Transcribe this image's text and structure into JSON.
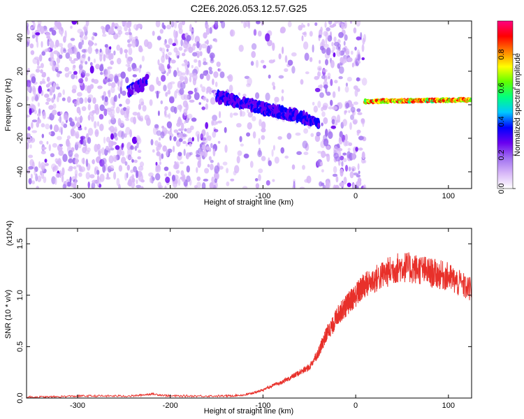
{
  "title": "C2E6.2026.053.12.57.G25",
  "chart_data": [
    {
      "type": "heatmap",
      "xlabel": "Height of straight line (km)",
      "ylabel": "Frequency (Hz)",
      "xlim": [
        -355,
        125
      ],
      "ylim": [
        -50,
        50
      ],
      "xticks": [
        -300,
        -200,
        -100,
        0,
        100
      ],
      "yticks": [
        -40,
        -20,
        0,
        20,
        40
      ],
      "grid": false,
      "colorbar": {
        "label": "Normalized spectral amplitude",
        "range": [
          0.0,
          1.0
        ],
        "ticks": [
          0.0,
          0.2,
          0.4,
          0.6,
          0.8
        ],
        "tick_labels": [
          "0.0",
          "0.2",
          "0.4",
          "0.6",
          "0.8"
        ],
        "colors": [
          "#ffffff",
          "#d8b8f8",
          "#a070f0",
          "#6a00f0",
          "#0000ff",
          "#00c8ff",
          "#00ff80",
          "#60ff00",
          "#ffff00",
          "#ff8000",
          "#ff0000",
          "#ff0080"
        ]
      },
      "features": [
        {
          "x": [
            -245,
            -225
          ],
          "y": [
            8,
            14
          ],
          "amplitude": 0.35
        },
        {
          "x": [
            -150,
            -40
          ],
          "y": [
            5,
            -10
          ],
          "amplitude": 0.4
        },
        {
          "x": [
            10,
            125
          ],
          "y": [
            2,
            3
          ],
          "amplitude": 0.95
        }
      ]
    },
    {
      "type": "line",
      "xlabel": "Height of straight line (km)",
      "ylabel": "SNR (10 * v/v)",
      "y_multiplier": "(x10^4)",
      "xlim": [
        -355,
        125
      ],
      "ylim": [
        0,
        1.65
      ],
      "xticks": [
        -300,
        -200,
        -100,
        0,
        100
      ],
      "yticks": [
        0.0,
        0.5,
        1.0,
        1.5
      ],
      "ytick_labels": [
        "0.0",
        "0.5",
        "1.0",
        "1.5"
      ],
      "grid": false,
      "series": [
        {
          "color": "#e8302a",
          "x": [
            -355,
            -330,
            -300,
            -270,
            -240,
            -220,
            -200,
            -170,
            -140,
            -120,
            -110,
            -100,
            -90,
            -80,
            -70,
            -60,
            -50,
            -40,
            -35,
            -30,
            -25,
            -20,
            -15,
            -10,
            -5,
            0,
            5,
            10,
            20,
            30,
            40,
            50,
            60,
            70,
            80,
            90,
            100,
            110,
            125
          ],
          "y": [
            0.01,
            0.01,
            0.02,
            0.02,
            0.02,
            0.04,
            0.02,
            0.02,
            0.02,
            0.03,
            0.05,
            0.08,
            0.12,
            0.15,
            0.2,
            0.25,
            0.3,
            0.45,
            0.55,
            0.65,
            0.7,
            0.8,
            0.85,
            0.9,
            0.95,
            1.0,
            1.05,
            1.1,
            1.15,
            1.2,
            1.25,
            1.28,
            1.26,
            1.25,
            1.22,
            1.2,
            1.18,
            1.12,
            1.05
          ]
        }
      ]
    }
  ]
}
